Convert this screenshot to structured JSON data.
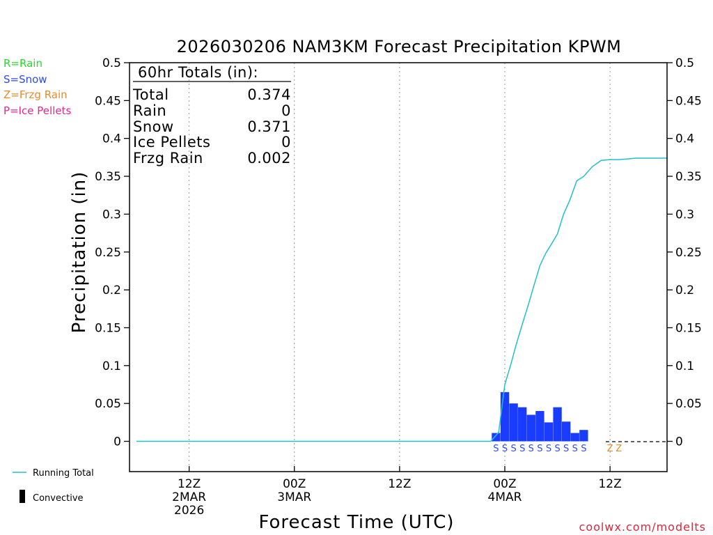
{
  "chart_data": {
    "type": "bar",
    "title": "2026030206 NAM3KM Forecast Precipitation KPWM",
    "xlabel": "Forecast Time (UTC)",
    "ylabel": "Precipitation (in)",
    "ylim": [
      -0.04,
      0.5
    ],
    "yticks": [
      0,
      0.05,
      0.1,
      0.15,
      0.2,
      0.25,
      0.3,
      0.35,
      0.4,
      0.45,
      0.5
    ],
    "ytick_labels": [
      "0",
      "0.05",
      "0.1",
      "0.15",
      "0.2",
      "0.25",
      "0.3",
      "0.35",
      "0.4",
      "0.45",
      "0.5"
    ],
    "xlim_hours": [
      -0.8,
      60.5
    ],
    "xticks": [
      {
        "hour": 6,
        "lines": [
          "12Z",
          "2MAR",
          "2026"
        ]
      },
      {
        "hour": 18,
        "lines": [
          "00Z",
          "3MAR"
        ]
      },
      {
        "hour": 30,
        "lines": [
          "12Z"
        ]
      },
      {
        "hour": 42,
        "lines": [
          "00Z",
          "4MAR"
        ]
      },
      {
        "hour": 54,
        "lines": [
          "12Z"
        ]
      }
    ],
    "hourly_hours": [
      41,
      42,
      43,
      44,
      45,
      46,
      47,
      48,
      49,
      50,
      51
    ],
    "hourly_values": [
      0.011,
      0.065,
      0.05,
      0.045,
      0.035,
      0.04,
      0.025,
      0.045,
      0.026,
      0.011,
      0.015
    ],
    "running_total_hours": [
      0,
      40.4,
      41.3,
      42,
      42.7,
      43.3,
      44,
      44.7,
      45.3,
      46,
      46.7,
      47.4,
      48,
      48.7,
      49.4,
      50.2,
      51,
      52,
      53,
      54,
      55,
      56,
      57,
      58,
      59,
      60.5
    ],
    "running_total_values": [
      0,
      0,
      0.012,
      0.075,
      0.102,
      0.128,
      0.155,
      0.181,
      0.205,
      0.232,
      0.249,
      0.262,
      0.274,
      0.3,
      0.318,
      0.344,
      0.35,
      0.363,
      0.371,
      0.372,
      0.372,
      0.373,
      0.374,
      0.374,
      0.374,
      0.374
    ],
    "ptype_markers": [
      {
        "hour": 41,
        "code": "S"
      },
      {
        "hour": 42,
        "code": "S"
      },
      {
        "hour": 43,
        "code": "S"
      },
      {
        "hour": 44,
        "code": "S"
      },
      {
        "hour": 45,
        "code": "S"
      },
      {
        "hour": 46,
        "code": "S"
      },
      {
        "hour": 47,
        "code": "S"
      },
      {
        "hour": 48,
        "code": "S"
      },
      {
        "hour": 49,
        "code": "S"
      },
      {
        "hour": 50,
        "code": "S"
      },
      {
        "hour": 51,
        "code": "S"
      },
      {
        "hour": 54,
        "code": "Z"
      },
      {
        "hour": 55,
        "code": "Z"
      }
    ],
    "totals": {
      "header": "60hr Totals (in):",
      "rows": [
        {
          "label": "Total",
          "value": "0.374"
        },
        {
          "label": "Rain",
          "value": "0"
        },
        {
          "label": "Snow",
          "value": "0.371"
        },
        {
          "label": "Ice Pellets",
          "value": "0"
        },
        {
          "label": "Frzg Rain",
          "value": "0.002"
        }
      ]
    },
    "type_legend": [
      {
        "text": "R=Rain",
        "color": "#22dd22"
      },
      {
        "text": "S=Snow",
        "color": "#2e4bf2"
      },
      {
        "text": "Z=Frzg Rain",
        "color": "#e68a2e"
      },
      {
        "text": "P=Ice Pellets",
        "color": "#e82590"
      }
    ],
    "series_legend": {
      "running_total": "Running Total",
      "convective": "Convective"
    },
    "credit": "coolwx.com/modelts",
    "colors": {
      "snow_bar": "#1a3cff",
      "running_total": "#20c0c8",
      "snow_marker": "#2e4bf2",
      "frzg_marker": "#e68a2e",
      "credit": "#d8283c",
      "grid": "#999999"
    }
  }
}
